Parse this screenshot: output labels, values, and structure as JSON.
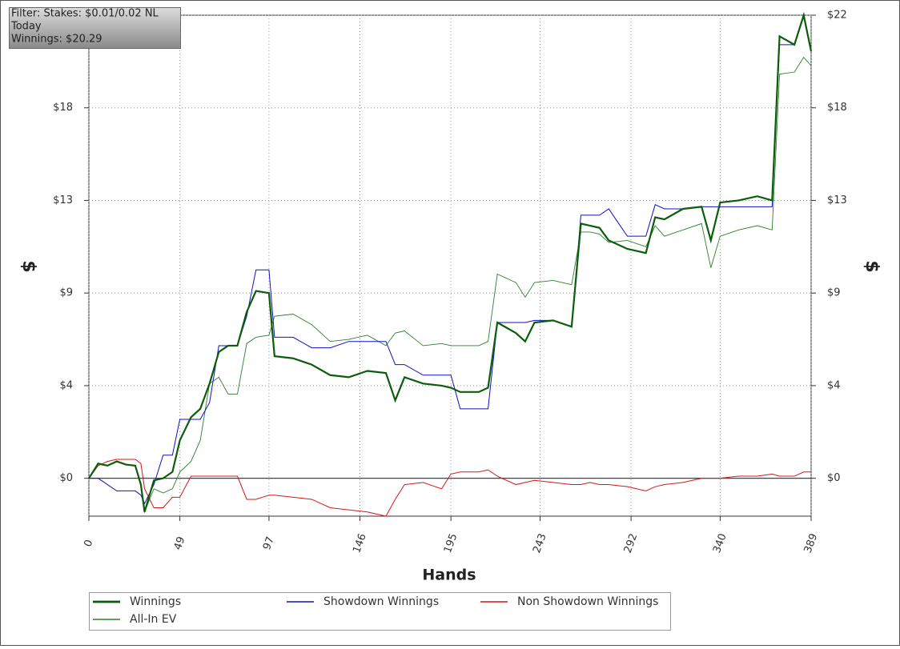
{
  "filter": {
    "lines": [
      "Filter: Stakes: $0.01/0.02 NL",
      "Today",
      "Winnings: $20.29"
    ]
  },
  "chart_data": {
    "type": "line",
    "xlabel": "Hands",
    "ylabel": "$",
    "x": [
      0,
      5,
      10,
      15,
      20,
      25,
      28,
      30,
      35,
      40,
      45,
      49,
      55,
      60,
      65,
      70,
      75,
      80,
      85,
      90,
      97,
      100,
      110,
      120,
      130,
      140,
      150,
      160,
      165,
      170,
      180,
      190,
      195,
      200,
      210,
      215,
      220,
      230,
      235,
      240,
      250,
      260,
      265,
      270,
      275,
      280,
      290,
      300,
      305,
      310,
      320,
      330,
      335,
      340,
      350,
      360,
      368,
      372,
      380,
      385,
      389
    ],
    "series": [
      {
        "name": "Winnings",
        "color": "#0b5d0b",
        "width": 2.2,
        "values": [
          0,
          0.7,
          0.6,
          0.8,
          0.65,
          0.6,
          -0.3,
          -1.6,
          -0.1,
          0,
          0.3,
          1.8,
          2.9,
          3.3,
          4.5,
          6.0,
          6.3,
          6.3,
          7.9,
          8.9,
          8.8,
          5.8,
          5.7,
          5.4,
          4.9,
          4.8,
          5.1,
          5.0,
          3.7,
          4.8,
          4.5,
          4.4,
          4.3,
          4.1,
          4.1,
          4.3,
          7.4,
          6.9,
          6.5,
          7.4,
          7.5,
          7.2,
          12.1,
          12.0,
          11.9,
          11.3,
          10.9,
          10.7,
          12.4,
          12.3,
          12.8,
          12.9,
          11.3,
          13.1,
          13.2,
          13.4,
          13.2,
          21.0,
          20.6,
          22.0,
          20.29
        ]
      },
      {
        "name": "Showdown Winnings",
        "color": "#1010c0",
        "width": 1,
        "values": [
          0,
          0,
          -0.3,
          -0.6,
          -0.6,
          -0.6,
          -0.8,
          -1.2,
          -0.3,
          1.1,
          1.1,
          2.8,
          2.8,
          2.8,
          3.6,
          6.3,
          6.3,
          6.3,
          7.7,
          9.9,
          9.9,
          6.7,
          6.7,
          6.2,
          6.2,
          6.5,
          6.5,
          6.5,
          5.4,
          5.4,
          4.9,
          4.9,
          4.9,
          3.3,
          3.3,
          3.3,
          7.4,
          7.4,
          7.4,
          7.5,
          7.5,
          7.2,
          12.5,
          12.5,
          12.5,
          12.8,
          11.5,
          11.5,
          13.0,
          12.8,
          12.8,
          12.9,
          12.9,
          12.9,
          12.9,
          12.9,
          12.9,
          20.6,
          20.6,
          22.0,
          20.3
        ]
      },
      {
        "name": "Non Showdown Winnings",
        "color": "#d01818",
        "width": 1,
        "values": [
          0,
          0.6,
          0.8,
          0.9,
          0.9,
          0.9,
          0.7,
          -0.5,
          -1.4,
          -1.4,
          -0.9,
          -0.9,
          0.1,
          0.1,
          0.1,
          0.1,
          0.1,
          0.1,
          -1.0,
          -1.0,
          -0.8,
          -0.8,
          -0.9,
          -1.0,
          -1.4,
          -1.5,
          -1.6,
          -1.8,
          -1.0,
          -0.3,
          -0.2,
          -0.5,
          0.2,
          0.3,
          0.3,
          0.4,
          0.1,
          -0.3,
          -0.2,
          -0.1,
          -0.2,
          -0.3,
          -0.3,
          -0.2,
          -0.3,
          -0.3,
          -0.4,
          -0.6,
          -0.4,
          -0.3,
          -0.2,
          0.0,
          0.0,
          0.0,
          0.1,
          0.1,
          0.2,
          0.1,
          0.1,
          0.3,
          0.3
        ]
      },
      {
        "name": "All-In EV",
        "color": "#2f7d2f",
        "width": 0.9,
        "values": [
          0,
          0.7,
          0.6,
          0.8,
          0.65,
          0.6,
          -0.3,
          -1.6,
          -0.5,
          -0.7,
          -0.5,
          0.3,
          0.8,
          1.8,
          4.5,
          4.8,
          4.0,
          4.0,
          6.4,
          6.7,
          6.8,
          7.7,
          7.8,
          7.3,
          6.5,
          6.6,
          6.8,
          6.3,
          6.9,
          7.0,
          6.3,
          6.4,
          6.3,
          6.3,
          6.3,
          6.5,
          9.7,
          9.3,
          8.6,
          9.3,
          9.4,
          9.2,
          11.7,
          11.7,
          11.6,
          11.2,
          11.3,
          11.0,
          12.0,
          11.5,
          11.8,
          12.1,
          10.0,
          11.5,
          11.8,
          12.0,
          11.8,
          19.2,
          19.3,
          20.0,
          19.6
        ]
      }
    ],
    "xlim": [
      0,
      389
    ],
    "xticks": [
      0,
      49,
      97,
      146,
      195,
      243,
      292,
      340,
      389
    ],
    "ylim": [
      -1.8,
      22
    ],
    "yticks": [
      {
        "value": 0,
        "label": "$0"
      },
      {
        "value": 4.4,
        "label": "$4"
      },
      {
        "value": 8.8,
        "label": "$9"
      },
      {
        "value": 13.2,
        "label": "$13"
      },
      {
        "value": 17.6,
        "label": "$18"
      },
      {
        "value": 22,
        "label": "$22"
      }
    ],
    "grid": true
  }
}
